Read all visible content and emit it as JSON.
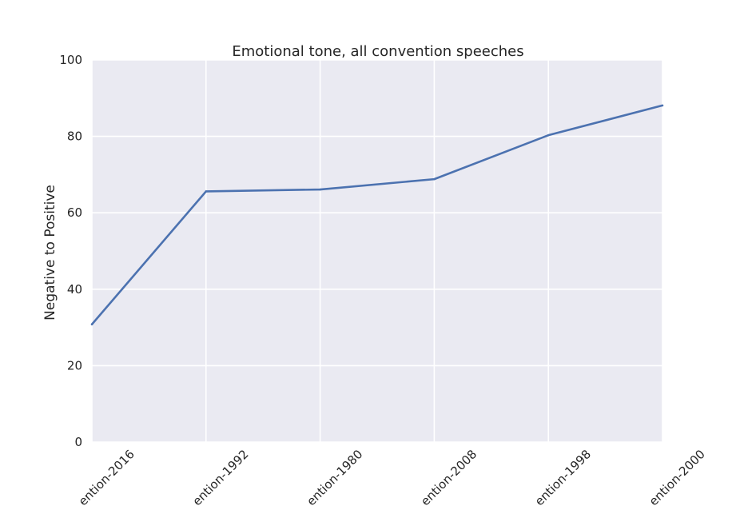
{
  "chart_data": {
    "type": "line",
    "title": "Emotional tone, all convention speeches",
    "xlabel": "",
    "ylabel": "Negative to Positive",
    "categories": [
      "ention-2016",
      "ention-1992",
      "ention-1980",
      "ention-2008",
      "ention-1998",
      "ention-2000"
    ],
    "series": [
      {
        "values": [
          30.8,
          65.6,
          66.1,
          68.8,
          80.3,
          88.1
        ]
      }
    ],
    "ylim": [
      0,
      100
    ],
    "yticks": [
      "0",
      "20",
      "40",
      "60",
      "80",
      "100"
    ],
    "grid": true,
    "legend": "none"
  },
  "colors": {
    "plot_background": "#eaeaf2",
    "grid": "#ffffff",
    "line": "#4c72b0",
    "text": "#262626"
  }
}
